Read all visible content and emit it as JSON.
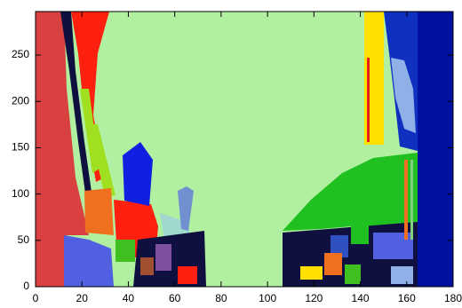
{
  "chart_data": {
    "type": "image",
    "xlim": [
      0,
      180
    ],
    "ylim": [
      0,
      297
    ],
    "xticks": [
      0,
      20,
      40,
      60,
      80,
      100,
      120,
      140,
      160,
      180
    ],
    "yticks": [
      0,
      50,
      100,
      150,
      200,
      250
    ]
  }
}
